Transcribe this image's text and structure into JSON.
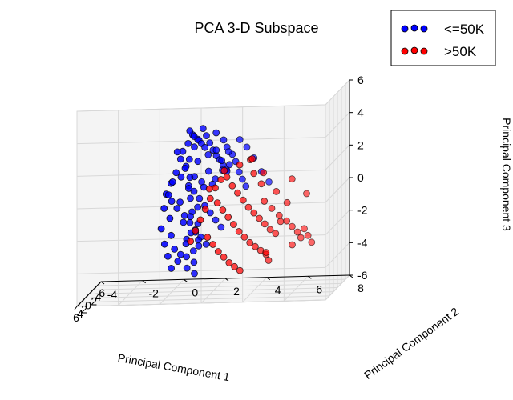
{
  "chart_data": {
    "type": "scatter",
    "projection": "3d",
    "title": "PCA 3-D Subspace",
    "xlabel": "Principal Component 1",
    "ylabel": "Principal Component 2",
    "zlabel": "Principal Component 3",
    "xlim": [
      -6,
      6
    ],
    "ylim": [
      -4,
      8
    ],
    "zlim": [
      -6,
      6
    ],
    "xticks": [
      "-6",
      "-4",
      "-2",
      "0",
      "2",
      "4",
      "6"
    ],
    "yticks": [
      "-4",
      "-2",
      "0",
      "2",
      "4",
      "6",
      "8"
    ],
    "zticks": [
      "-6",
      "-4",
      "-2",
      "0",
      "2",
      "4",
      "6"
    ],
    "grid": true,
    "legend_position": "top-right",
    "legend": [
      "<=50K",
      ">50K"
    ],
    "series": [
      {
        "name": "<=50K",
        "color": "#0000ff",
        "points": [
          [
            -4.2,
            0.6,
            3.1
          ],
          [
            -4.0,
            0.4,
            2.6
          ],
          [
            -3.8,
            0.5,
            3.4
          ],
          [
            -3.6,
            0.9,
            2.9
          ],
          [
            -3.4,
            0.2,
            2.2
          ],
          [
            -3.2,
            1.2,
            3.6
          ],
          [
            -3.0,
            0.8,
            2.5
          ],
          [
            -2.8,
            1.4,
            3.2
          ],
          [
            -2.6,
            0.6,
            1.8
          ],
          [
            -2.4,
            1.6,
            2.8
          ],
          [
            -2.2,
            1.1,
            3.0
          ],
          [
            -2.0,
            1.8,
            2.4
          ],
          [
            -1.8,
            0.9,
            3.3
          ],
          [
            -1.6,
            2.0,
            2.1
          ],
          [
            -1.4,
            1.3,
            2.9
          ],
          [
            -1.2,
            2.2,
            1.9
          ],
          [
            -1.0,
            1.5,
            2.7
          ],
          [
            -0.8,
            2.4,
            1.6
          ],
          [
            -0.6,
            1.7,
            2.3
          ],
          [
            -0.4,
            2.6,
            1.4
          ],
          [
            -4.4,
            0.0,
            1.6
          ],
          [
            -4.2,
            -0.2,
            0.8
          ],
          [
            -4.0,
            0.3,
            1.2
          ],
          [
            -3.8,
            -0.4,
            0.2
          ],
          [
            -3.6,
            0.1,
            0.6
          ],
          [
            -3.4,
            -0.6,
            -0.4
          ],
          [
            -3.2,
            0.5,
            0.1
          ],
          [
            -3.0,
            -0.3,
            -0.8
          ],
          [
            -2.8,
            0.8,
            -0.2
          ],
          [
            -2.6,
            0.0,
            -1.2
          ],
          [
            -2.4,
            1.1,
            -0.6
          ],
          [
            -2.2,
            0.4,
            -1.6
          ],
          [
            -2.0,
            1.4,
            -1.0
          ],
          [
            -1.8,
            0.7,
            -2.0
          ],
          [
            -1.6,
            1.7,
            -1.4
          ],
          [
            -1.4,
            1.0,
            -2.4
          ],
          [
            -1.2,
            2.0,
            -1.8
          ],
          [
            -1.0,
            1.3,
            -2.8
          ],
          [
            -0.8,
            2.3,
            -2.2
          ],
          [
            -0.6,
            1.6,
            -3.2
          ],
          [
            -4.6,
            -0.6,
            -0.6
          ],
          [
            -4.4,
            -0.8,
            -1.4
          ],
          [
            -4.2,
            -0.5,
            -2.0
          ],
          [
            -4.0,
            -0.9,
            -2.6
          ],
          [
            -3.8,
            -0.4,
            -3.0
          ],
          [
            -3.6,
            -0.7,
            -3.5
          ],
          [
            -3.4,
            -0.2,
            -3.8
          ],
          [
            -3.2,
            -0.5,
            -4.2
          ],
          [
            -3.0,
            0.0,
            -4.5
          ],
          [
            -2.8,
            -0.3,
            -4.9
          ],
          [
            -4.8,
            -0.2,
            2.0
          ],
          [
            -4.6,
            0.2,
            1.0
          ],
          [
            -4.5,
            -0.4,
            0.2
          ],
          [
            -4.3,
            0.4,
            -0.2
          ],
          [
            -4.1,
            0.0,
            -1.0
          ],
          [
            -3.9,
            0.6,
            -1.6
          ],
          [
            -3.7,
            0.2,
            -2.2
          ],
          [
            -3.5,
            0.8,
            -2.8
          ],
          [
            -3.3,
            0.4,
            -3.2
          ],
          [
            -3.1,
            1.0,
            -3.6
          ],
          [
            -2.5,
            1.9,
            3.4
          ],
          [
            -2.1,
            2.3,
            3.0
          ],
          [
            -1.7,
            2.5,
            2.6
          ],
          [
            -1.3,
            2.8,
            2.2
          ],
          [
            -0.9,
            3.0,
            1.8
          ],
          [
            -0.5,
            3.2,
            1.2
          ],
          [
            -0.1,
            3.4,
            0.8
          ],
          [
            0.2,
            3.6,
            0.4
          ],
          [
            -2.9,
            1.5,
            1.0
          ],
          [
            -2.5,
            1.2,
            0.4
          ],
          [
            -2.0,
            0.9,
            0.8
          ],
          [
            -1.5,
            1.4,
            0.2
          ],
          [
            -1.0,
            0.8,
            -0.4
          ],
          [
            -0.5,
            1.2,
            -0.9
          ],
          [
            0.0,
            0.9,
            -1.4
          ],
          [
            0.4,
            1.3,
            -1.8
          ],
          [
            0.8,
            1.0,
            -2.3
          ],
          [
            1.2,
            1.4,
            -2.7
          ],
          [
            -1.9,
            0.5,
            -3.3
          ],
          [
            -1.5,
            0.9,
            -3.7
          ],
          [
            -1.1,
            0.6,
            -4.0
          ],
          [
            -0.7,
            1.0,
            -4.3
          ],
          [
            -0.3,
            0.7,
            -4.6
          ],
          [
            0.1,
            1.1,
            -4.9
          ],
          [
            -2.3,
            0.2,
            -4.0
          ],
          [
            0.6,
            2.8,
            2.6
          ],
          [
            1.2,
            3.4,
            3.4
          ],
          [
            1.8,
            3.8,
            3.0
          ],
          [
            2.4,
            4.2,
            2.4
          ],
          [
            2.8,
            4.6,
            1.6
          ],
          [
            3.2,
            5.0,
            1.0
          ],
          [
            1.6,
            2.6,
            1.6
          ],
          [
            2.2,
            3.0,
            2.0
          ],
          [
            0.4,
            2.0,
            0.6
          ],
          [
            1.0,
            2.2,
            1.0
          ],
          [
            -3.6,
            1.8,
            2.2
          ],
          [
            -3.2,
            2.1,
            1.6
          ],
          [
            -2.7,
            2.4,
            1.0
          ],
          [
            -4.7,
            0.8,
            1.4
          ],
          [
            -4.9,
            0.4,
            0.4
          ]
        ]
      },
      {
        "name": ">50K",
        "color": "#ff0000",
        "points": [
          [
            -0.6,
            2.6,
            0.9
          ],
          [
            -0.2,
            2.9,
            0.4
          ],
          [
            0.2,
            3.2,
            0.0
          ],
          [
            0.6,
            3.5,
            -0.4
          ],
          [
            1.0,
            3.8,
            -0.8
          ],
          [
            1.4,
            4.1,
            -1.1
          ],
          [
            1.8,
            4.4,
            -1.4
          ],
          [
            2.2,
            4.7,
            -1.7
          ],
          [
            2.6,
            5.0,
            -2.0
          ],
          [
            3.0,
            5.3,
            -2.2
          ],
          [
            0.0,
            2.2,
            -0.6
          ],
          [
            0.4,
            2.5,
            -1.0
          ],
          [
            0.8,
            2.8,
            -1.4
          ],
          [
            1.2,
            3.1,
            -1.8
          ],
          [
            1.6,
            3.4,
            -2.2
          ],
          [
            2.0,
            3.7,
            -2.5
          ],
          [
            2.4,
            4.0,
            -2.8
          ],
          [
            2.8,
            4.3,
            -3.0
          ],
          [
            3.2,
            4.6,
            -3.2
          ],
          [
            3.6,
            4.9,
            -3.4
          ],
          [
            0.8,
            1.8,
            -2.6
          ],
          [
            1.2,
            2.1,
            -3.0
          ],
          [
            1.6,
            2.4,
            -3.4
          ],
          [
            2.0,
            2.7,
            -3.7
          ],
          [
            2.4,
            3.0,
            -4.0
          ],
          [
            2.8,
            3.3,
            -4.2
          ],
          [
            3.2,
            3.6,
            -4.4
          ],
          [
            1.4,
            4.6,
            -0.4
          ],
          [
            1.8,
            5.0,
            -0.8
          ],
          [
            2.2,
            5.4,
            -1.2
          ],
          [
            2.6,
            5.8,
            -1.5
          ],
          [
            3.0,
            6.1,
            -1.8
          ],
          [
            3.4,
            6.4,
            -2.1
          ],
          [
            3.8,
            6.6,
            -2.4
          ],
          [
            4.0,
            6.2,
            -2.8
          ],
          [
            -1.0,
            2.0,
            0.2
          ],
          [
            -0.6,
            1.8,
            -0.4
          ],
          [
            -0.2,
            1.6,
            -1.0
          ],
          [
            0.2,
            1.4,
            -1.6
          ],
          [
            0.6,
            1.2,
            -2.2
          ],
          [
            1.0,
            1.0,
            -2.8
          ],
          [
            -1.4,
            2.4,
            1.2
          ],
          [
            -1.8,
            2.2,
            0.6
          ],
          [
            -2.2,
            1.6,
            0.0
          ],
          [
            3.6,
            5.6,
            -1.4
          ],
          [
            4.2,
            6.8,
            -1.8
          ],
          [
            4.4,
            7.0,
            -2.2
          ],
          [
            4.6,
            7.2,
            -2.6
          ],
          [
            3.4,
            5.0,
            -3.8
          ],
          [
            2.6,
            4.8,
            -3.4
          ],
          [
            0.4,
            4.0,
            1.2
          ],
          [
            0.8,
            4.4,
            0.6
          ],
          [
            1.6,
            5.2,
            0.2
          ],
          [
            2.4,
            5.8,
            -0.4
          ],
          [
            3.0,
            6.8,
            0.2
          ],
          [
            2.0,
            6.0,
            1.0
          ],
          [
            -0.8,
            3.2,
            1.6
          ],
          [
            0.0,
            3.8,
            2.0
          ],
          [
            1.2,
            4.0,
            2.2
          ],
          [
            1.8,
            4.6,
            1.4
          ]
        ]
      }
    ]
  }
}
